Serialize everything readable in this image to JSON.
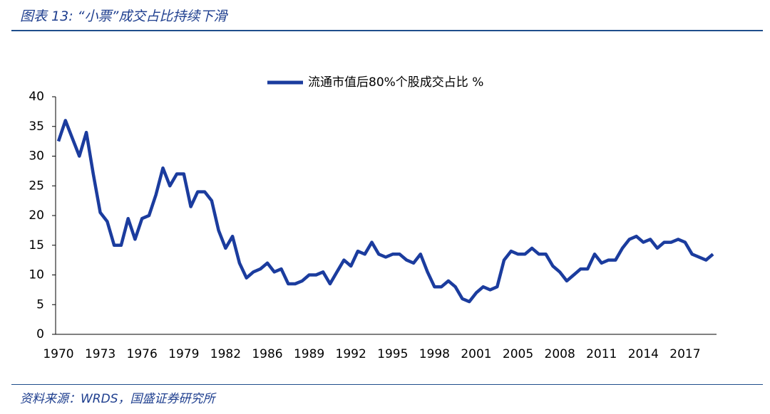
{
  "header": {
    "title": "图表 13:  “小票”成交占比持续下滑"
  },
  "footer": {
    "source": "资料来源：WRDS，国盛证券研究所"
  },
  "chart_data": {
    "type": "line",
    "categories": [
      "1970",
      null,
      null,
      null,
      null,
      null,
      "1973",
      null,
      null,
      null,
      null,
      null,
      "1976",
      null,
      null,
      null,
      null,
      null,
      "1979",
      null,
      null,
      null,
      null,
      null,
      "1982",
      null,
      null,
      null,
      null,
      null,
      "1986",
      null,
      null,
      null,
      null,
      null,
      "1989",
      null,
      null,
      null,
      null,
      null,
      "1992",
      null,
      null,
      null,
      null,
      null,
      "1995",
      null,
      null,
      null,
      null,
      null,
      "1998",
      null,
      null,
      null,
      null,
      null,
      "2001",
      null,
      null,
      null,
      null,
      null,
      "2005",
      null,
      null,
      null,
      null,
      null,
      "2008",
      null,
      null,
      null,
      null,
      null,
      "2011",
      null,
      null,
      null,
      null,
      null,
      "2014",
      null,
      null,
      null,
      null,
      null,
      "2017",
      null,
      null,
      null,
      null
    ],
    "series": [
      {
        "name": "流通市值后80%个股成交占比 %",
        "color": "#1b3c9e",
        "values": [
          32.5,
          36,
          33,
          30,
          34,
          27,
          20.5,
          19,
          15,
          15,
          19.5,
          16,
          19.5,
          20,
          23.5,
          28,
          25,
          27,
          27,
          21.5,
          24,
          24,
          22.5,
          17.5,
          14.5,
          16.5,
          12,
          9.5,
          10.5,
          11,
          12,
          10.5,
          11,
          8.5,
          8.5,
          9,
          10,
          10,
          10.5,
          8.5,
          10.5,
          12.5,
          11.5,
          14,
          13.5,
          15.5,
          13.5,
          13,
          13.5,
          13.5,
          12.5,
          12,
          13.5,
          10.5,
          8,
          8,
          9,
          8,
          6,
          5.5,
          7,
          8,
          7.5,
          8,
          12.5,
          14,
          13.5,
          13.5,
          14.5,
          13.5,
          13.5,
          11.5,
          10.5,
          9,
          10,
          11,
          11,
          13.5,
          12,
          12.5,
          12.5,
          14.5,
          16,
          16.5,
          15.5,
          16,
          14.5,
          15.5,
          15.5,
          16,
          15.5,
          13.5,
          13,
          12.5,
          13.5
        ]
      }
    ],
    "ylim": [
      0,
      40
    ],
    "yticks": [
      0,
      5,
      10,
      15,
      20,
      25,
      30,
      35,
      40
    ],
    "legend": "top"
  }
}
